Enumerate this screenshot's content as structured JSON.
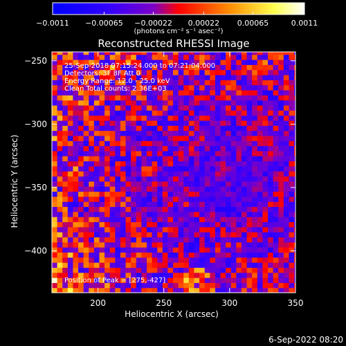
{
  "chart_data": {
    "type": "heatmap",
    "title": "Reconstructed RHESSI Image",
    "xlabel": "Heliocentric X (arcsec)",
    "ylabel": "Heliocentric Y (arcsec)",
    "xlim": [
      165,
      350
    ],
    "ylim": [
      -433,
      -243
    ],
    "x_ticks": [
      200,
      250,
      300,
      350
    ],
    "y_ticks": [
      -250,
      -300,
      -350,
      -400
    ],
    "colorbar": {
      "label": "(photons cm⁻² s⁻¹ asec⁻²)",
      "range": [
        -0.0011,
        0.0011
      ],
      "tick_values": [
        -0.0011,
        -0.00065,
        -0.00022,
        0.00022,
        0.00065,
        0.0011
      ],
      "tick_labels": [
        "−0.0011",
        "−0.00065",
        "−0.00022",
        "0.00022",
        "0.00065",
        "0.0011"
      ],
      "colors": [
        "#0000ff",
        "#7b00c8",
        "#ff0000",
        "#ff8c00",
        "#ffff50",
        "#ffffff"
      ]
    },
    "annotations": [
      "25-Sep-2018 07:15:24.000 to 07:21:04.000",
      "Detectors: 3F 8F  Att 0",
      "Energy Range: 12.0 - 25.0 keV",
      "Clean     Total counts: 2.36E+03",
      "Position of Peak = [275,-427]"
    ],
    "peak_position": [
      275,
      -427
    ],
    "pixel_size_arcsec": 4,
    "grid": false
  },
  "footer_timestamp": "6-Sep-2022 08:20"
}
